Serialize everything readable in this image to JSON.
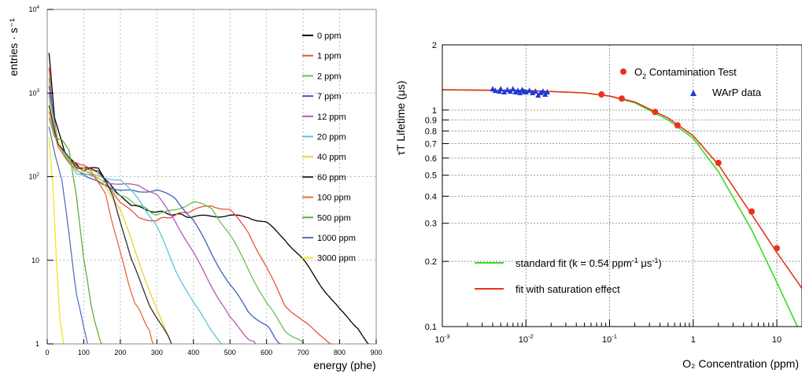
{
  "chart_data": [
    {
      "type": "line",
      "title": "",
      "xlabel": "energy (phe)",
      "ylabel": "entries · s⁻¹",
      "xlim": [
        0,
        900
      ],
      "ylim": [
        1,
        10000
      ],
      "yscale": "log",
      "grid": true,
      "legend_position": "right",
      "x_ticks": [
        "0",
        "100",
        "200",
        "300",
        "400",
        "500",
        "600",
        "700",
        "800",
        "900"
      ],
      "y_ticks": [
        {
          "base": "1",
          "exp": ""
        },
        {
          "base": "10",
          "exp": ""
        },
        {
          "base": "10",
          "exp": "2"
        },
        {
          "base": "10",
          "exp": "3"
        },
        {
          "base": "10",
          "exp": "4"
        }
      ],
      "series": [
        {
          "name": "0 ppm",
          "color": "#000000",
          "points": [
            [
              5,
              3000
            ],
            [
              20,
              500
            ],
            [
              50,
              180
            ],
            [
              80,
              140
            ],
            [
              100,
              120
            ],
            [
              140,
              130
            ],
            [
              160,
              90
            ],
            [
              200,
              60
            ],
            [
              230,
              45
            ],
            [
              300,
              38
            ],
            [
              400,
              33
            ],
            [
              450,
              34
            ],
            [
              500,
              34
            ],
            [
              550,
              33
            ],
            [
              600,
              28
            ],
            [
              650,
              18
            ],
            [
              700,
              10
            ],
            [
              750,
              5
            ],
            [
              800,
              2.5
            ],
            [
              850,
              1.6
            ],
            [
              880,
              1
            ]
          ]
        },
        {
          "name": "1 ppm",
          "color": "#e8523a",
          "points": [
            [
              5,
              2000
            ],
            [
              20,
              300
            ],
            [
              60,
              150
            ],
            [
              100,
              140
            ],
            [
              150,
              100
            ],
            [
              200,
              50
            ],
            [
              250,
              32
            ],
            [
              300,
              30
            ],
            [
              400,
              40
            ],
            [
              450,
              45
            ],
            [
              500,
              40
            ],
            [
              550,
              22
            ],
            [
              600,
              8
            ],
            [
              650,
              3
            ],
            [
              700,
              1.8
            ],
            [
              750,
              1.3
            ],
            [
              780,
              1
            ]
          ]
        },
        {
          "name": "2 ppm",
          "color": "#66c24d",
          "points": [
            [
              5,
              1500
            ],
            [
              20,
              300
            ],
            [
              60,
              150
            ],
            [
              100,
              120
            ],
            [
              200,
              60
            ],
            [
              300,
              35
            ],
            [
              350,
              40
            ],
            [
              400,
              50
            ],
            [
              450,
              42
            ],
            [
              500,
              20
            ],
            [
              550,
              8
            ],
            [
              600,
              3
            ],
            [
              650,
              1.5
            ],
            [
              700,
              1
            ]
          ]
        },
        {
          "name": "7 ppm",
          "color": "#3d5fbf",
          "points": [
            [
              5,
              1200
            ],
            [
              30,
              250
            ],
            [
              80,
              120
            ],
            [
              150,
              80
            ],
            [
              200,
              70
            ],
            [
              250,
              65
            ],
            [
              300,
              70
            ],
            [
              350,
              55
            ],
            [
              400,
              30
            ],
            [
              450,
              12
            ],
            [
              500,
              5
            ],
            [
              550,
              2.5
            ],
            [
              600,
              1.6
            ],
            [
              640,
              1
            ]
          ]
        },
        {
          "name": "12 ppm",
          "color": "#b45bb0",
          "points": [
            [
              5,
              1000
            ],
            [
              30,
              250
            ],
            [
              80,
              120
            ],
            [
              150,
              90
            ],
            [
              200,
              80
            ],
            [
              250,
              80
            ],
            [
              300,
              60
            ],
            [
              350,
              30
            ],
            [
              400,
              12
            ],
            [
              450,
              5
            ],
            [
              500,
              2
            ],
            [
              550,
              1.2
            ],
            [
              570,
              1
            ]
          ]
        },
        {
          "name": "20 ppm",
          "color": "#56c8d8",
          "points": [
            [
              5,
              900
            ],
            [
              30,
              250
            ],
            [
              80,
              110
            ],
            [
              150,
              100
            ],
            [
              200,
              90
            ],
            [
              250,
              55
            ],
            [
              300,
              25
            ],
            [
              350,
              8
            ],
            [
              400,
              3
            ],
            [
              450,
              1.5
            ],
            [
              480,
              1
            ]
          ]
        },
        {
          "name": "40 ppm",
          "color": "#e6d629",
          "points": [
            [
              5,
              800
            ],
            [
              30,
              250
            ],
            [
              80,
              120
            ],
            [
              120,
              110
            ],
            [
              150,
              90
            ],
            [
              200,
              40
            ],
            [
              250,
              10
            ],
            [
              300,
              2.5
            ],
            [
              330,
              1.2
            ],
            [
              340,
              1
            ]
          ]
        },
        {
          "name": "60 ppm",
          "color": "#303030",
          "points": [
            [
              5,
              700
            ],
            [
              30,
              240
            ],
            [
              80,
              130
            ],
            [
              140,
              120
            ],
            [
              180,
              60
            ],
            [
              230,
              10
            ],
            [
              280,
              3
            ],
            [
              330,
              1.2
            ],
            [
              340,
              1
            ]
          ]
        },
        {
          "name": "100 ppm",
          "color": "#e86a3a",
          "points": [
            [
              5,
              600
            ],
            [
              30,
              220
            ],
            [
              70,
              130
            ],
            [
              120,
              120
            ],
            [
              160,
              60
            ],
            [
              200,
              12
            ],
            [
              240,
              3
            ],
            [
              280,
              1.5
            ],
            [
              290,
              1
            ]
          ]
        },
        {
          "name": "500 ppm",
          "color": "#5fae3a",
          "points": [
            [
              5,
              500
            ],
            [
              20,
              300
            ],
            [
              40,
              280
            ],
            [
              60,
              200
            ],
            [
              80,
              60
            ],
            [
              100,
              10
            ],
            [
              120,
              3
            ],
            [
              140,
              1.3
            ],
            [
              150,
              1
            ]
          ]
        },
        {
          "name": "1000 ppm",
          "color": "#5a6fc8",
          "points": [
            [
              5,
              400
            ],
            [
              20,
              200
            ],
            [
              40,
              90
            ],
            [
              60,
              20
            ],
            [
              80,
              4
            ],
            [
              100,
              1.5
            ],
            [
              110,
              1
            ]
          ]
        },
        {
          "name": "3000 ppm",
          "color": "#f2e61a",
          "points": [
            [
              5,
              300
            ],
            [
              15,
              80
            ],
            [
              25,
              10
            ],
            [
              35,
              2
            ],
            [
              45,
              1
            ]
          ]
        }
      ]
    },
    {
      "type": "scatter",
      "title": "",
      "xlabel": "O₂ Concentration (ppm)",
      "ylabel": "τT Lifetime (μs)",
      "xscale": "log",
      "yscale": "log",
      "xlim": [
        0.001,
        20
      ],
      "ylim": [
        0.1,
        2
      ],
      "grid": true,
      "legend_position": "top-right",
      "x_ticks": [
        {
          "base": "10",
          "exp": "-3"
        },
        {
          "base": "10",
          "exp": "-2"
        },
        {
          "base": "10",
          "exp": "-1"
        },
        {
          "base": "1",
          "exp": ""
        },
        {
          "base": "10",
          "exp": ""
        }
      ],
      "y_ticks": [
        "0.1",
        "0.2",
        "0.3",
        "0.4",
        "0.5",
        "0.6",
        "0.7",
        "0.8",
        "0.9",
        "1",
        "2"
      ],
      "series": [
        {
          "name": "O₂ Contamination Test",
          "marker": "circle",
          "color": "#e8321e",
          "points": [
            [
              0.08,
              1.18
            ],
            [
              0.14,
              1.13
            ],
            [
              0.35,
              0.98
            ],
            [
              0.65,
              0.85
            ],
            [
              2.0,
              0.57
            ],
            [
              5.0,
              0.34
            ],
            [
              10.0,
              0.23
            ]
          ]
        },
        {
          "name": "WArP data",
          "marker": "triangle",
          "color": "#1f3ad6",
          "points": [
            [
              0.004,
              1.25
            ],
            [
              0.0043,
              1.23
            ],
            [
              0.0048,
              1.22
            ],
            [
              0.005,
              1.25
            ],
            [
              0.0055,
              1.21
            ],
            [
              0.006,
              1.24
            ],
            [
              0.0065,
              1.22
            ],
            [
              0.007,
              1.25
            ],
            [
              0.0075,
              1.21
            ],
            [
              0.008,
              1.23
            ],
            [
              0.0085,
              1.2
            ],
            [
              0.009,
              1.24
            ],
            [
              0.0095,
              1.22
            ],
            [
              0.01,
              1.21
            ],
            [
              0.011,
              1.23
            ],
            [
              0.012,
              1.2
            ],
            [
              0.013,
              1.22
            ],
            [
              0.014,
              1.17
            ],
            [
              0.015,
              1.2
            ],
            [
              0.016,
              1.22
            ],
            [
              0.017,
              1.18
            ],
            [
              0.018,
              1.21
            ]
          ]
        },
        {
          "name": "standard fit (k = 0.54 ppm⁻¹ μs⁻¹)",
          "line": true,
          "color": "#33dd22",
          "points": [
            [
              0.001,
              1.24
            ],
            [
              0.01,
              1.23
            ],
            [
              0.05,
              1.2
            ],
            [
              0.1,
              1.16
            ],
            [
              0.2,
              1.08
            ],
            [
              0.5,
              0.9
            ],
            [
              1.0,
              0.74
            ],
            [
              2.0,
              0.52
            ],
            [
              5.0,
              0.28
            ],
            [
              10.0,
              0.16
            ],
            [
              20.0,
              0.09
            ]
          ]
        },
        {
          "name": "fit with saturation effect",
          "line": true,
          "color": "#e8321e",
          "points": [
            [
              0.001,
              1.24
            ],
            [
              0.01,
              1.23
            ],
            [
              0.05,
              1.2
            ],
            [
              0.1,
              1.16
            ],
            [
              0.2,
              1.09
            ],
            [
              0.5,
              0.92
            ],
            [
              1.0,
              0.76
            ],
            [
              2.0,
              0.56
            ],
            [
              5.0,
              0.33
            ],
            [
              10.0,
              0.22
            ],
            [
              20.0,
              0.15
            ]
          ]
        }
      ],
      "legend_inset": [
        {
          "text": "O",
          "sub": "2",
          "rest": " Contamination Test",
          "marker": "circle",
          "color": "#e8321e"
        },
        {
          "text": "WArP data",
          "sub": "",
          "rest": "",
          "marker": "triangle",
          "color": "#1f3ad6"
        }
      ],
      "legend_lines": [
        {
          "text": "standard fit (k = 0.54 ppm",
          "sup1": "-1",
          "mid": " μs",
          "sup2": "-1",
          "end": ")",
          "color": "#33dd22"
        },
        {
          "text": "fit with saturation effect",
          "sup1": "",
          "mid": "",
          "sup2": "",
          "end": "",
          "color": "#e8321e"
        }
      ]
    }
  ]
}
